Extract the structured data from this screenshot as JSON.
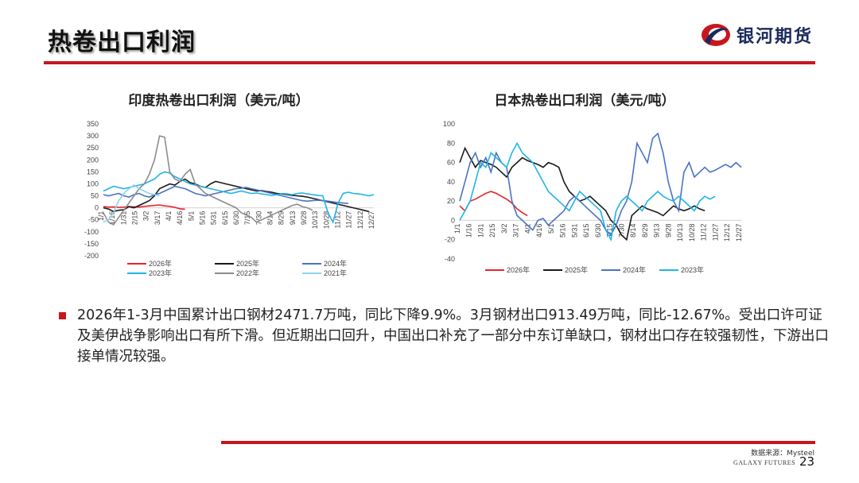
{
  "header": {
    "title": "热卷出口利润",
    "logo_text": "银河期货"
  },
  "colors": {
    "accent": "#c8161d",
    "logo_blue": "#1b2a5c",
    "s2026": "#e8242a",
    "s2025": "#1a1a1a",
    "s2024": "#4a72c4",
    "s2023": "#1fb4e8",
    "s2022": "#8c8c8c",
    "s2021": "#8fd3ee"
  },
  "chart_data": [
    {
      "type": "line",
      "title": "印度热卷出口利润（美元/吨）",
      "ylim": [
        -200,
        350
      ],
      "yticks": [
        350,
        300,
        250,
        200,
        150,
        100,
        50,
        0,
        -50,
        -100,
        -150,
        -200
      ],
      "x_ticks": [
        "1/1",
        "1/16",
        "1/31",
        "2/15",
        "3/2",
        "3/17",
        "4/1",
        "4/16",
        "5/1",
        "5/16",
        "5/31",
        "6/15",
        "6/30",
        "7/15",
        "7/30",
        "8/14",
        "8/29",
        "9/13",
        "9/28",
        "10/13",
        "10/28",
        "11/12",
        "11/27",
        "12/12",
        "12/27"
      ],
      "legend_position": "bottom",
      "series": [
        {
          "name": "2026年",
          "color_key": "s2026",
          "values": [
            5,
            3,
            4,
            2,
            3,
            5,
            4,
            3,
            6,
            8,
            10,
            12,
            8,
            6,
            2,
            -4,
            -6
          ]
        },
        {
          "name": "2025年",
          "color_key": "s2025",
          "values": [
            0,
            -5,
            -15,
            -10,
            -8,
            5,
            0,
            10,
            20,
            30,
            50,
            80,
            90,
            100,
            95,
            110,
            120,
            105,
            100,
            90,
            85,
            100,
            110,
            105,
            100,
            95,
            90,
            85,
            80,
            75,
            70,
            72,
            68,
            65,
            60,
            58,
            55,
            52,
            50,
            48,
            45,
            40,
            35,
            30,
            25,
            20,
            15,
            10,
            5,
            0,
            -5,
            -10,
            -15
          ]
        },
        {
          "name": "2024年",
          "color_key": "s2024",
          "values": [
            55,
            50,
            55,
            60,
            50,
            45,
            55,
            60,
            50,
            45,
            55,
            60,
            70,
            80,
            90,
            85,
            80,
            70,
            60,
            55,
            50,
            55,
            60,
            65,
            70,
            75,
            80,
            82,
            85,
            80,
            75,
            70,
            65,
            60,
            55,
            50,
            45,
            40,
            35,
            30,
            28,
            30,
            32,
            30,
            28,
            25,
            22,
            20,
            18
          ]
        },
        {
          "name": "2023年",
          "color_key": "s2023",
          "values": [
            70,
            80,
            90,
            85,
            80,
            85,
            90,
            95,
            100,
            110,
            120,
            140,
            150,
            145,
            130,
            120,
            110,
            100,
            95,
            90,
            85,
            80,
            75,
            70,
            65,
            60,
            65,
            70,
            65,
            60,
            62,
            58,
            55,
            52,
            55,
            60,
            58,
            55,
            60,
            62,
            58,
            55,
            52,
            50,
            -20,
            -60,
            20,
            60,
            65,
            60,
            58,
            55,
            50,
            55
          ]
        },
        {
          "name": "2022年",
          "color_key": "s2022",
          "values": [
            -20,
            -60,
            -70,
            -40,
            -10,
            20,
            50,
            80,
            100,
            140,
            200,
            300,
            295,
            150,
            120,
            110,
            140,
            160,
            100,
            80,
            60,
            50,
            40,
            30,
            20,
            10,
            0,
            -20,
            -30,
            -40,
            -60,
            -50,
            -40,
            -30,
            -20,
            -10,
            0,
            10,
            15,
            5,
            0,
            -10
          ]
        },
        {
          "name": "2021年",
          "color_key": "s2021",
          "values": [
            -60,
            -50,
            -20,
            30,
            60,
            80,
            95,
            80,
            70,
            60,
            55,
            50
          ]
        }
      ]
    },
    {
      "type": "line",
      "title": "日本热卷出口利润（美元/吨）",
      "ylim": [
        -40,
        100
      ],
      "yticks": [
        100,
        80,
        60,
        40,
        20,
        0,
        -20,
        -40
      ],
      "x_ticks": [
        "1/1",
        "1/16",
        "1/31",
        "2/15",
        "3/2",
        "3/17",
        "4/1",
        "4/16",
        "5/1",
        "5/16",
        "5/31",
        "6/15",
        "6/30",
        "7/15",
        "7/30",
        "8/14",
        "8/29",
        "9/13",
        "9/28",
        "10/13",
        "10/28",
        "11/12",
        "11/27",
        "12/12",
        "12/27"
      ],
      "legend_position": "bottom",
      "series": [
        {
          "name": "2026年",
          "color_key": "s2026",
          "values": [
            15,
            10,
            20,
            22,
            25,
            28,
            30,
            28,
            25,
            22,
            18,
            12,
            8,
            5
          ]
        },
        {
          "name": "2025年",
          "color_key": "s2025",
          "values": [
            60,
            75,
            65,
            55,
            62,
            60,
            58,
            55,
            50,
            45,
            55,
            60,
            65,
            62,
            60,
            58,
            55,
            60,
            58,
            55,
            40,
            30,
            25,
            20,
            22,
            25,
            20,
            15,
            10,
            0,
            -5,
            -15,
            -20,
            5,
            10,
            15,
            12,
            10,
            8,
            5,
            10,
            15,
            12,
            10,
            12,
            15,
            12,
            10
          ]
        },
        {
          "name": "2024年",
          "color_key": "s2024",
          "values": [
            20,
            40,
            60,
            70,
            55,
            65,
            50,
            70,
            60,
            55,
            20,
            5,
            0,
            -5,
            -10,
            0,
            2,
            -5,
            0,
            5,
            10,
            20,
            25,
            20,
            15,
            10,
            5,
            0,
            -10,
            -15,
            -5,
            10,
            20,
            40,
            80,
            70,
            60,
            85,
            90,
            70,
            40,
            20,
            10,
            50,
            60,
            45,
            50,
            55,
            50,
            52,
            55,
            58,
            55,
            60,
            55
          ]
        },
        {
          "name": "2023年",
          "color_key": "s2023",
          "values": [
            0,
            10,
            20,
            40,
            60,
            55,
            70,
            65,
            60,
            55,
            70,
            80,
            70,
            65,
            60,
            50,
            40,
            30,
            25,
            20,
            15,
            10,
            20,
            30,
            25,
            20,
            15,
            10,
            -10,
            -20,
            10,
            20,
            25,
            20,
            15,
            10,
            20,
            25,
            30,
            25,
            22,
            20,
            25,
            20,
            15,
            10,
            20,
            25,
            22,
            25
          ]
        }
      ]
    }
  ],
  "body": {
    "text": "2026年1-3月中国累计出口钢材2471.7万吨，同比下降9.9%。3月钢材出口913.49万吨，同比-12.67%。受出口许可证及美伊战争影响出口有所下滑。但近期出口回升，中国出口补充了一部分中东订单缺口，钢材出口存在较强韧性，下游出口接单情况较强。"
  },
  "footer": {
    "source": "数据来源：Mysteel",
    "brand": "GALAXY FUTURES",
    "page": "23"
  }
}
